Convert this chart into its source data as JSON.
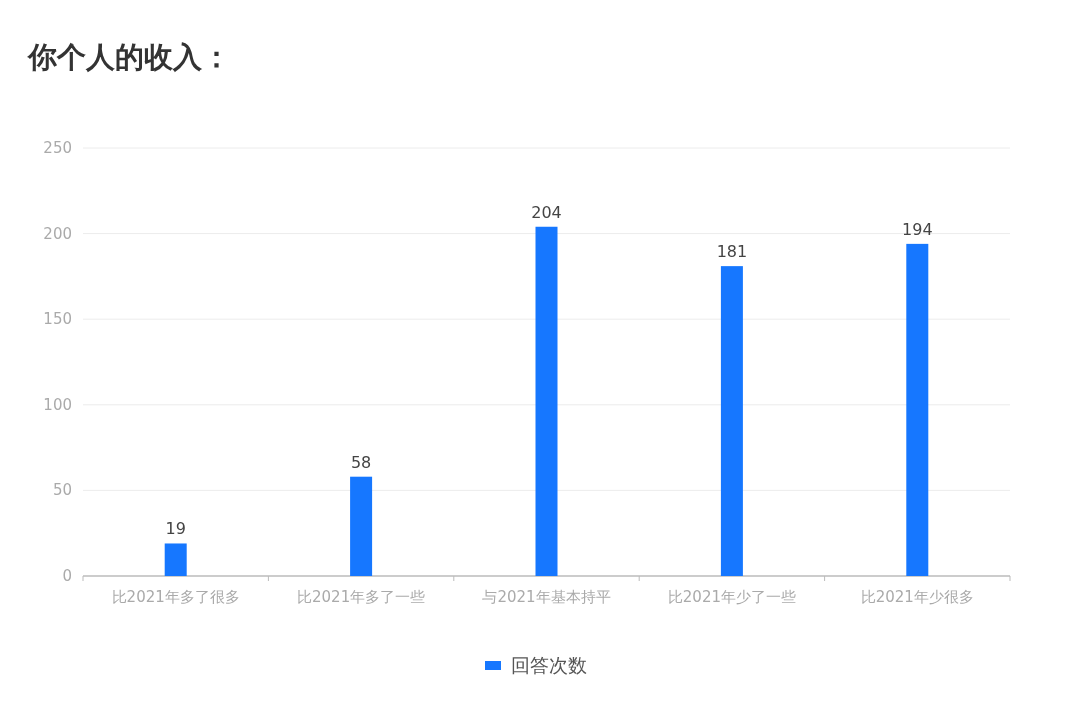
{
  "chart_data": {
    "type": "bar",
    "title": "你个人的收入：",
    "categories": [
      "比2021年多了很多",
      "比2021年多了一些",
      "与2021年基本持平",
      "比2021年少了一些",
      "比2021年少很多"
    ],
    "series": [
      {
        "name": "回答次数",
        "color": "#1677ff",
        "values": [
          19,
          58,
          204,
          181,
          194
        ]
      }
    ],
    "ylim": [
      0,
      250
    ],
    "yticks": [
      0,
      50,
      100,
      150,
      200,
      250
    ],
    "grid": "y",
    "legend": "bottom",
    "data_labels": true
  }
}
